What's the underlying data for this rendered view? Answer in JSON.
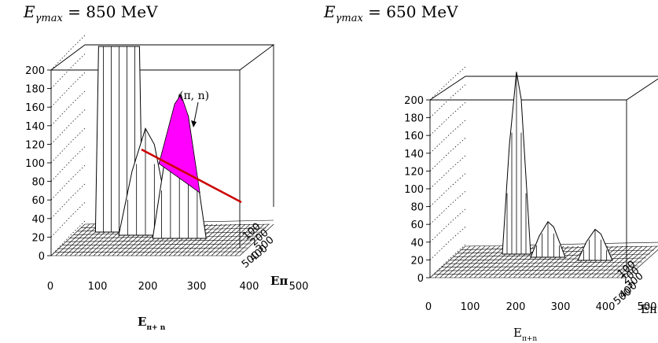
{
  "chart_data": [
    {
      "type": "surface3d",
      "title": "E_γmax = 850 MeV",
      "title_main": "E",
      "title_sub": "γmax",
      "title_rest": " = 850 MeV",
      "z_ticks": [
        "0",
        "20",
        "40",
        "60",
        "80",
        "100",
        "120",
        "140",
        "160",
        "180",
        "200"
      ],
      "x_ticks": [
        "0",
        "100",
        "200",
        "300",
        "400",
        "500"
      ],
      "y_ticks": [
        "100",
        "200",
        "300",
        "400",
        "500"
      ],
      "x_label_main": "E",
      "x_label_sub": "π+ n",
      "y_label": "Eπ",
      "zlim": [
        0,
        200
      ],
      "annotation": "(π, n)",
      "peaks": [
        {
          "x": 180,
          "height": 200
        },
        {
          "x": 250,
          "height": 115
        },
        {
          "x": 340,
          "height": 155
        }
      ],
      "highlight_color": "#ff00ff",
      "cut_line_color": "#cc0000"
    },
    {
      "type": "surface3d",
      "title": "E_γmax = 650 MeV",
      "title_main": "E",
      "title_sub": "γmax",
      "title_rest": " = 650 MeV",
      "z_ticks": [
        "0",
        "20",
        "40",
        "60",
        "80",
        "100",
        "120",
        "140",
        "160",
        "180",
        "200"
      ],
      "x_ticks": [
        "0",
        "100",
        "200",
        "300",
        "400",
        "500"
      ],
      "y_ticks": [
        "100",
        "200",
        "300",
        "400",
        "500"
      ],
      "x_label_main": "E",
      "x_label_sub": "π+n",
      "y_label": "Eπ",
      "zlim": [
        0,
        200
      ],
      "peaks": [
        {
          "x": 220,
          "height": 205
        },
        {
          "x": 300,
          "height": 40
        },
        {
          "x": 420,
          "height": 35
        }
      ]
    }
  ]
}
